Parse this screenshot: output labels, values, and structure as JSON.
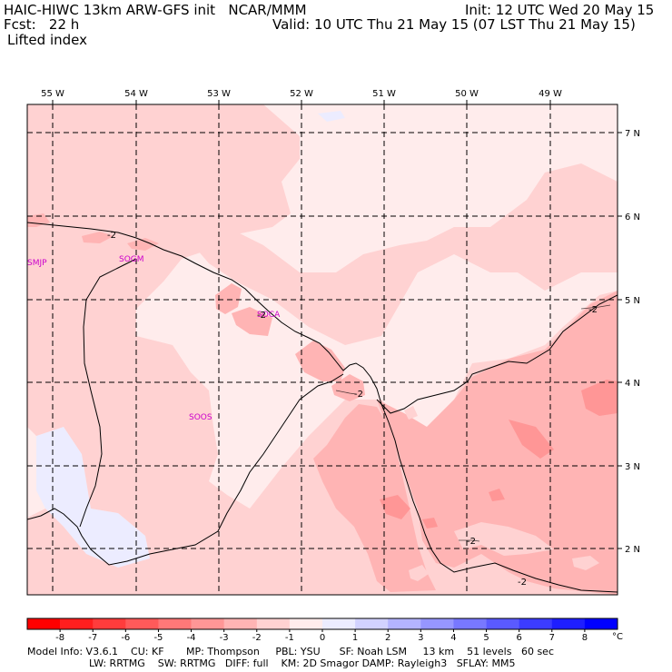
{
  "header": {
    "model_title": "HAIC-HIWC 13km ARW-GFS init   NCAR/MMM",
    "init": "Init: 12 UTC Wed 20 May 15",
    "fcst": "Fcst:   22 h",
    "valid": "Valid: 10 UTC Thu 21 May 15 (07 LST Thu 21 May 15)",
    "field": "Lifted index"
  },
  "axes": {
    "lon_labels": [
      "55 W",
      "54 W",
      "53 W",
      "52 W",
      "51 W",
      "50 W",
      "49 W"
    ],
    "lat_labels": [
      "7 N",
      "6 N",
      "5 N",
      "4 N",
      "3 N",
      "2 N"
    ]
  },
  "stations": [
    "SMJP",
    "SOGM",
    "SOCA",
    "SOOS"
  ],
  "contour_labels": [
    "-2",
    "-2",
    "-2",
    "-2",
    "-2",
    "-2"
  ],
  "colorbar": {
    "unit": "°C",
    "ticks": [
      "-8",
      "-7",
      "-6",
      "-5",
      "-4",
      "-3",
      "-2",
      "-1",
      "0",
      "1",
      "2",
      "3",
      "4",
      "5",
      "6",
      "7",
      "8"
    ],
    "colors": [
      "#ff0000",
      "#ff1e1e",
      "#ff3c3c",
      "#ff5a5a",
      "#ff7878",
      "#ff9696",
      "#ffb4b4",
      "#ffd2d2",
      "#ffecec",
      "#ececff",
      "#d2d2ff",
      "#b4b4ff",
      "#9696ff",
      "#7878ff",
      "#5a5aff",
      "#3c3cff",
      "#1e1eff",
      "#0000ff"
    ]
  },
  "footer": {
    "line1": "Model Info: V3.6.1    CU: KF       MP: Thompson     PBL: YSU      SF: Noah LSM     13 km    51 levels   60 sec",
    "line2": "LW: RRTMG    SW: RRTMG   DIFF: full    KM: 2D Smagor DAMP: Rayleigh3   SFLAY: MM5"
  },
  "fill_colors": {
    "lightest": "#ffecec",
    "light": "#ffd2d2",
    "medium": "#ffb4b4",
    "darker": "#ff9696",
    "blue": "#ececff"
  }
}
